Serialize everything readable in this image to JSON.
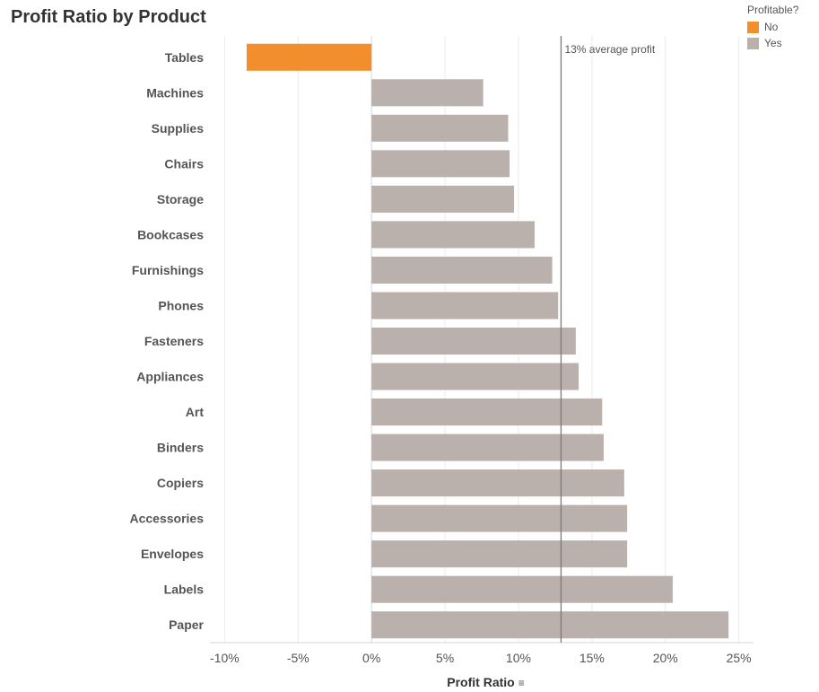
{
  "chart_data": {
    "type": "bar",
    "orientation": "horizontal",
    "title": "Profit Ratio by Product",
    "xlabel": "Profit Ratio",
    "ylabel": "",
    "xlim": [
      -0.11,
      0.26
    ],
    "xticks": [
      -0.1,
      -0.05,
      0,
      0.05,
      0.1,
      0.15,
      0.2,
      0.25
    ],
    "xtick_labels": [
      "-10%",
      "-5%",
      "0%",
      "5%",
      "10%",
      "15%",
      "20%",
      "25%"
    ],
    "grid": true,
    "categories": [
      "Tables",
      "Machines",
      "Supplies",
      "Chairs",
      "Storage",
      "Bookcases",
      "Furnishings",
      "Phones",
      "Fasteners",
      "Appliances",
      "Art",
      "Binders",
      "Copiers",
      "Accessories",
      "Envelopes",
      "Labels",
      "Paper"
    ],
    "values": [
      -0.085,
      0.076,
      0.093,
      0.094,
      0.097,
      0.111,
      0.123,
      0.127,
      0.139,
      0.141,
      0.157,
      0.158,
      0.172,
      0.174,
      0.174,
      0.205,
      0.243
    ],
    "profitable": [
      "No",
      "Yes",
      "Yes",
      "Yes",
      "Yes",
      "Yes",
      "Yes",
      "Yes",
      "Yes",
      "Yes",
      "Yes",
      "Yes",
      "Yes",
      "Yes",
      "Yes",
      "Yes",
      "Yes"
    ],
    "reference_line": {
      "value": 0.129,
      "label": "13% average profit"
    },
    "legend": {
      "title": "Profitable?",
      "placement": "top-right",
      "items": [
        {
          "label": "No",
          "color": "#f28e2b"
        },
        {
          "label": "Yes",
          "color": "#bab0ac"
        }
      ]
    },
    "colors": {
      "No": "#f28e2b",
      "Yes": "#bab0ac"
    }
  },
  "icons": {
    "sort": "sort-icon"
  }
}
